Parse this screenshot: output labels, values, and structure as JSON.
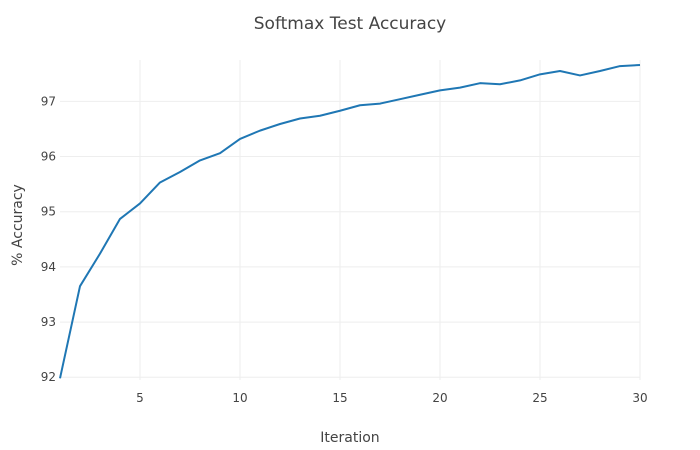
{
  "chart_data": {
    "type": "line",
    "title": "Softmax Test Accuracy",
    "xlabel": "Iteration",
    "ylabel": "% Accuracy",
    "xlim": [
      1,
      30
    ],
    "ylim": [
      91.95,
      97.75
    ],
    "x_ticks": [
      5,
      10,
      15,
      20,
      25,
      30
    ],
    "y_ticks": [
      92,
      93,
      94,
      95,
      96,
      97
    ],
    "grid": true,
    "series": [
      {
        "color": "#1f77b4",
        "x": [
          1,
          2,
          3,
          4,
          5,
          6,
          7,
          8,
          9,
          10,
          11,
          12,
          13,
          14,
          15,
          16,
          17,
          18,
          19,
          20,
          21,
          22,
          23,
          24,
          25,
          26,
          27,
          28,
          29,
          30
        ],
        "y": [
          91.98,
          93.65,
          94.24,
          94.87,
          95.15,
          95.53,
          95.72,
          95.93,
          96.06,
          96.32,
          96.47,
          96.59,
          96.69,
          96.74,
          96.83,
          96.93,
          96.96,
          97.04,
          97.12,
          97.2,
          97.25,
          97.33,
          97.31,
          97.38,
          97.49,
          97.55,
          97.47,
          97.55,
          97.64,
          97.66
        ]
      }
    ]
  }
}
